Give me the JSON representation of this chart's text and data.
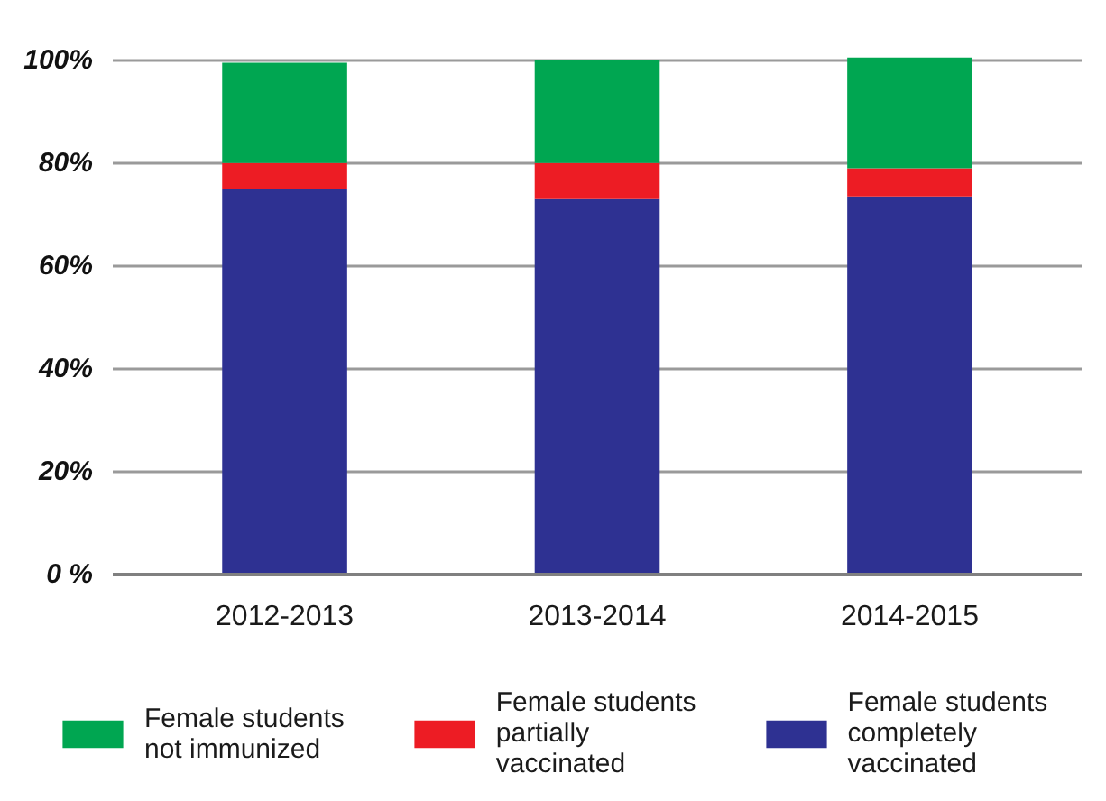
{
  "chart_data": {
    "type": "bar",
    "stacked": true,
    "categories": [
      "2012-2013",
      "2013-2014",
      "2014-2015"
    ],
    "series": [
      {
        "name": "Female students completely vaccinated",
        "color": "#2e3192",
        "values": [
          75,
          73,
          73.5
        ]
      },
      {
        "name": "Female students partially vaccinated",
        "color": "#ed1c24",
        "values": [
          5,
          7,
          5.5
        ]
      },
      {
        "name": "Female students not immunized",
        "color": "#00a651",
        "values": [
          19.5,
          20,
          21.5
        ]
      }
    ],
    "ylim": [
      0,
      101
    ],
    "yticks": [
      {
        "value": 0,
        "label": "0 %"
      },
      {
        "value": 20,
        "label": "20%"
      },
      {
        "value": 40,
        "label": "40%"
      },
      {
        "value": 60,
        "label": "60%"
      },
      {
        "value": 80,
        "label": "80%"
      },
      {
        "value": 100,
        "label": "100%"
      }
    ],
    "grid": "y",
    "legend": "bottom"
  }
}
